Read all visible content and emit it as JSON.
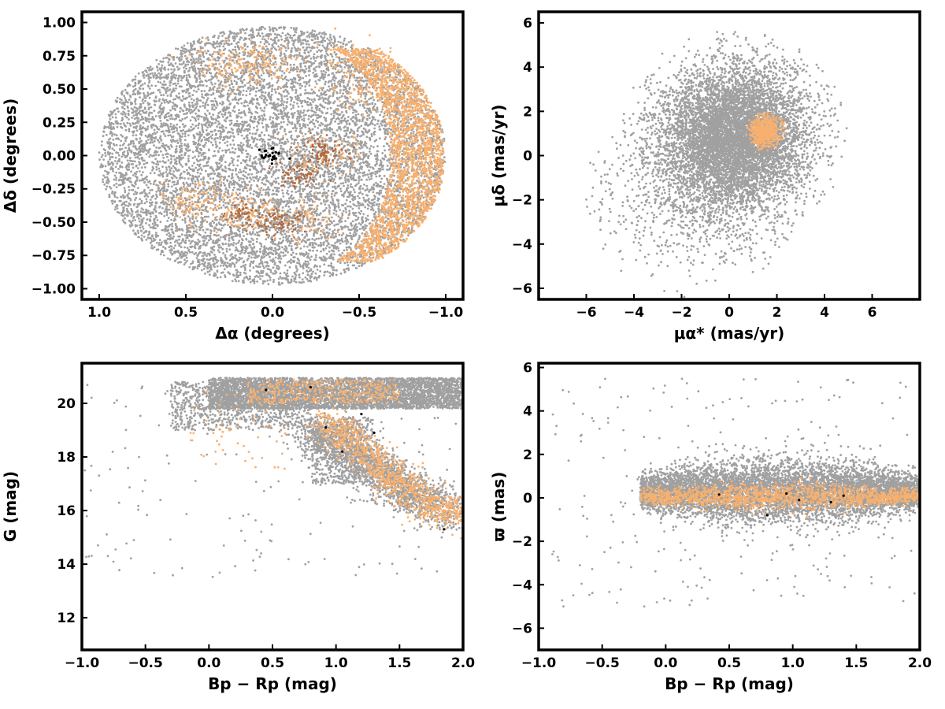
{
  "chart_data": [
    {
      "type": "scatter",
      "id": "sky",
      "xlabel": "Δα (degrees)",
      "ylabel": "Δδ (degrees)",
      "xlim": [
        1.1,
        -1.1
      ],
      "ylim": [
        -1.08,
        1.08
      ],
      "x_reversed": true,
      "xticks": [
        1.0,
        0.5,
        0.0,
        -0.5,
        -1.0
      ],
      "xtick_labels": [
        "1.0",
        "0.5",
        "0.0",
        "−0.5",
        "−1.0"
      ],
      "yticks": [
        -1.0,
        -0.75,
        -0.5,
        -0.25,
        0.0,
        0.25,
        0.5,
        0.75,
        1.0
      ],
      "ytick_labels": [
        "−1.00",
        "−0.75",
        "−0.50",
        "−0.25",
        "0.00",
        "0.25",
        "0.50",
        "0.75",
        "1.00"
      ],
      "grid": false,
      "colors": {
        "field": "#a0a0a0",
        "member": "#f7b06f",
        "dense": "#b06a40",
        "core": "#000000"
      },
      "series": [
        {
          "role": "field",
          "distribution": "disk",
          "center": [
            0,
            0
          ],
          "radius": [
            1.0,
            0.97
          ],
          "count": 9000
        },
        {
          "role": "member",
          "distribution": "arc",
          "center": [
            -0.85,
            0.0
          ],
          "radius": [
            0.2,
            0.8
          ],
          "count": 2200
        },
        {
          "role": "member",
          "distribution": "clumps",
          "centers": [
            [
              -0.55,
              0.5
            ],
            [
              -0.45,
              0.7
            ],
            [
              0.25,
              0.7
            ],
            [
              0.05,
              0.72
            ],
            [
              0.15,
              -0.42
            ],
            [
              0.45,
              -0.32
            ],
            [
              -0.3,
              0.0
            ],
            [
              -0.15,
              -0.5
            ]
          ],
          "spread": 0.08,
          "count": 700
        },
        {
          "role": "dense",
          "distribution": "clumps",
          "centers": [
            [
              -0.15,
              -0.15
            ],
            [
              -0.3,
              0.03
            ],
            [
              -0.05,
              -0.5
            ],
            [
              0.15,
              -0.45
            ]
          ],
          "spread": 0.05,
          "count": 260
        },
        {
          "role": "core",
          "distribution": "clumps",
          "centers": [
            [
              0.0,
              0.0
            ]
          ],
          "spread": 0.03,
          "count": 25
        }
      ]
    },
    {
      "type": "scatter",
      "id": "pm",
      "xlabel": "μα* (mas/yr)",
      "ylabel": "μδ (mas/yr)",
      "xlim": [
        -8,
        8
      ],
      "ylim": [
        -6.5,
        6.5
      ],
      "xticks": [
        -6,
        -4,
        -2,
        0,
        2,
        4,
        6
      ],
      "xtick_labels": [
        "−6",
        "−4",
        "−2",
        "0",
        "2",
        "4",
        "6"
      ],
      "yticks": [
        -6,
        -4,
        -2,
        0,
        2,
        4,
        6
      ],
      "ytick_labels": [
        "−6",
        "−4",
        "−2",
        "0",
        "2",
        "4",
        "6"
      ],
      "grid": false,
      "colors": {
        "field": "#a0a0a0",
        "member": "#f7b06f"
      },
      "series": [
        {
          "role": "field",
          "distribution": "gaussian-disk",
          "center": [
            0.2,
            0.9
          ],
          "sigma": [
            1.6,
            1.6
          ],
          "radius": 4.8,
          "count": 7000
        },
        {
          "role": "field",
          "distribution": "gaussian-disk",
          "center": [
            -1.5,
            -1.8
          ],
          "sigma": [
            2.2,
            1.8
          ],
          "radius": 4.8,
          "count": 900
        },
        {
          "role": "member",
          "distribution": "gaussian-disk",
          "center": [
            1.5,
            1.1
          ],
          "sigma": [
            0.33,
            0.4
          ],
          "radius": 0.9,
          "count": 500
        }
      ]
    },
    {
      "type": "scatter",
      "id": "cmd",
      "xlabel": "Bp − Rp (mag)",
      "ylabel": "G (mag)",
      "xlim": [
        -1.0,
        2.0
      ],
      "ylim": [
        10.8,
        21.5
      ],
      "xticks": [
        -1.0,
        -0.5,
        0.0,
        0.5,
        1.0,
        1.5,
        2.0
      ],
      "xtick_labels": [
        "−1.0",
        "−0.5",
        "0.0",
        "0.5",
        "1.0",
        "1.5",
        "2.0"
      ],
      "yticks": [
        12,
        14,
        16,
        18,
        20
      ],
      "ytick_labels": [
        "12",
        "14",
        "16",
        "18",
        "20"
      ],
      "grid": false,
      "colors": {
        "field": "#a0a0a0",
        "member": "#f7b06f",
        "core": "#000000"
      },
      "series": [
        {
          "role": "field",
          "distribution": "band",
          "x_range": [
            0.0,
            2.0
          ],
          "y_range": [
            19.8,
            20.95
          ],
          "count": 4200
        },
        {
          "role": "field",
          "distribution": "band",
          "x_range": [
            -0.3,
            0.8
          ],
          "y_range": [
            19.0,
            20.8
          ],
          "count": 900
        },
        {
          "role": "field",
          "distribution": "sequence",
          "path": [
            [
              0.8,
              18.8
            ],
            [
              1.1,
              18.3
            ],
            [
              1.35,
              17.4
            ],
            [
              1.6,
              16.6
            ],
            [
              1.9,
              15.9
            ]
          ],
          "spread": 0.18,
          "count": 1800
        },
        {
          "role": "field",
          "distribution": "band",
          "x_range": [
            0.8,
            1.3
          ],
          "y_range": [
            17.0,
            19.5
          ],
          "count": 600
        },
        {
          "role": "field",
          "distribution": "scatter",
          "x_range": [
            -1.0,
            2.0
          ],
          "y_range": [
            13.5,
            21.0
          ],
          "count": 160
        },
        {
          "role": "member",
          "distribution": "sequence",
          "path": [
            [
              0.9,
              19.3
            ],
            [
              1.15,
              18.6
            ],
            [
              1.35,
              17.6
            ],
            [
              1.55,
              16.8
            ],
            [
              1.8,
              16.1
            ],
            [
              2.0,
              15.7
            ]
          ],
          "spread": 0.14,
          "count": 900
        },
        {
          "role": "member",
          "distribution": "band",
          "x_range": [
            0.3,
            1.5
          ],
          "y_range": [
            20.0,
            20.9
          ],
          "count": 350
        },
        {
          "role": "member",
          "distribution": "scatter",
          "x_range": [
            -0.2,
            0.6
          ],
          "y_range": [
            17.5,
            20.5
          ],
          "count": 60
        },
        {
          "role": "core",
          "distribution": "points",
          "points": [
            [
              0.45,
              20.5
            ],
            [
              0.8,
              20.6
            ],
            [
              1.2,
              19.6
            ],
            [
              0.92,
              19.1
            ],
            [
              1.05,
              18.2
            ],
            [
              1.3,
              18.9
            ],
            [
              1.85,
              15.3
            ]
          ]
        }
      ]
    },
    {
      "type": "scatter",
      "id": "parallax",
      "xlabel": "Bp − Rp (mag)",
      "ylabel": "ϖ (mas)",
      "xlim": [
        -1.0,
        2.0
      ],
      "ylim": [
        -7.0,
        6.2
      ],
      "xticks": [
        -1.0,
        -0.5,
        0.0,
        0.5,
        1.0,
        1.5,
        2.0
      ],
      "xtick_labels": [
        "−1.0",
        "−0.5",
        "0.0",
        "0.5",
        "1.0",
        "1.5",
        "2.0"
      ],
      "yticks": [
        -6,
        -4,
        -2,
        0,
        2,
        4,
        6
      ],
      "ytick_labels": [
        "−6",
        "−4",
        "−2",
        "0",
        "2",
        "4",
        "6"
      ],
      "grid": false,
      "colors": {
        "field": "#a0a0a0",
        "member": "#f7b06f",
        "core": "#000000"
      },
      "series": [
        {
          "role": "field",
          "distribution": "lens",
          "x_range": [
            -0.2,
            2.0
          ],
          "y_center": 0.3,
          "y_spread": 0.75,
          "count": 6500
        },
        {
          "role": "field",
          "distribution": "scatter",
          "x_range": [
            -0.9,
            2.0
          ],
          "y_range": [
            -5.0,
            5.5
          ],
          "count": 250
        },
        {
          "role": "member",
          "distribution": "lens",
          "x_range": [
            -0.2,
            2.0
          ],
          "y_center": 0.05,
          "y_spread": 0.3,
          "count": 1400
        },
        {
          "role": "core",
          "distribution": "points",
          "points": [
            [
              0.42,
              0.15
            ],
            [
              0.8,
              -0.8
            ],
            [
              0.95,
              0.2
            ],
            [
              1.05,
              -0.1
            ],
            [
              1.3,
              -0.2
            ],
            [
              1.4,
              0.1
            ]
          ]
        }
      ]
    }
  ]
}
